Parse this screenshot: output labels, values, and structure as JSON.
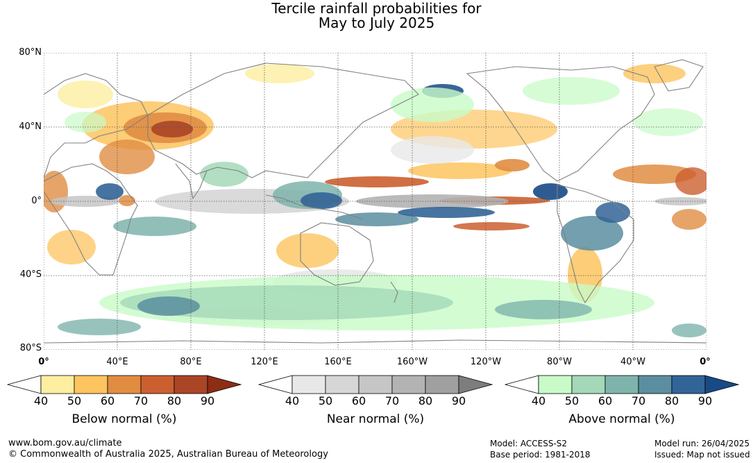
{
  "title": {
    "line1": "Tercile rainfall probabilities for",
    "line2": "May to July 2025"
  },
  "map": {
    "lat_labels": [
      "80°N",
      "40°N",
      "0°",
      "40°S",
      "80°S"
    ],
    "lon_labels": [
      "0°",
      "40°E",
      "80°E",
      "120°E",
      "160°E",
      "160°W",
      "120°W",
      "80°W",
      "40°W",
      "0°"
    ],
    "gridlines": true
  },
  "colorbars": [
    {
      "title": "Below normal (%)",
      "ticks": [
        "40",
        "50",
        "60",
        "70",
        "80",
        "90"
      ],
      "colors": [
        "#ffffff",
        "#fdeea0",
        "#fdc45f",
        "#e08d42",
        "#cc5f30",
        "#aa4526",
        "#8d2d14"
      ]
    },
    {
      "title": "Near normal (%)",
      "ticks": [
        "40",
        "50",
        "60",
        "70",
        "80",
        "90"
      ],
      "colors": [
        "#ffffff",
        "#e8e8e8",
        "#d6d6d6",
        "#c6c6c6",
        "#b3b3b3",
        "#a0a0a0",
        "#7d7d7d"
      ]
    },
    {
      "title": "Above normal (%)",
      "ticks": [
        "40",
        "50",
        "60",
        "70",
        "80",
        "90"
      ],
      "colors": [
        "#ffffff",
        "#c8fbc8",
        "#a4d8b8",
        "#7eb4ac",
        "#5b8ea0",
        "#336497",
        "#174a86"
      ]
    }
  ],
  "footer": {
    "website": "www.bom.gov.au/climate",
    "copyright": "© Commonwealth of Australia 2025, Australian Bureau of Meteorology",
    "model": "Model: ACCESS-S2",
    "base_period": "Base period: 1981-2018",
    "model_run": "Model run: 26/04/2025",
    "issued": "Issued: Map not issued"
  }
}
